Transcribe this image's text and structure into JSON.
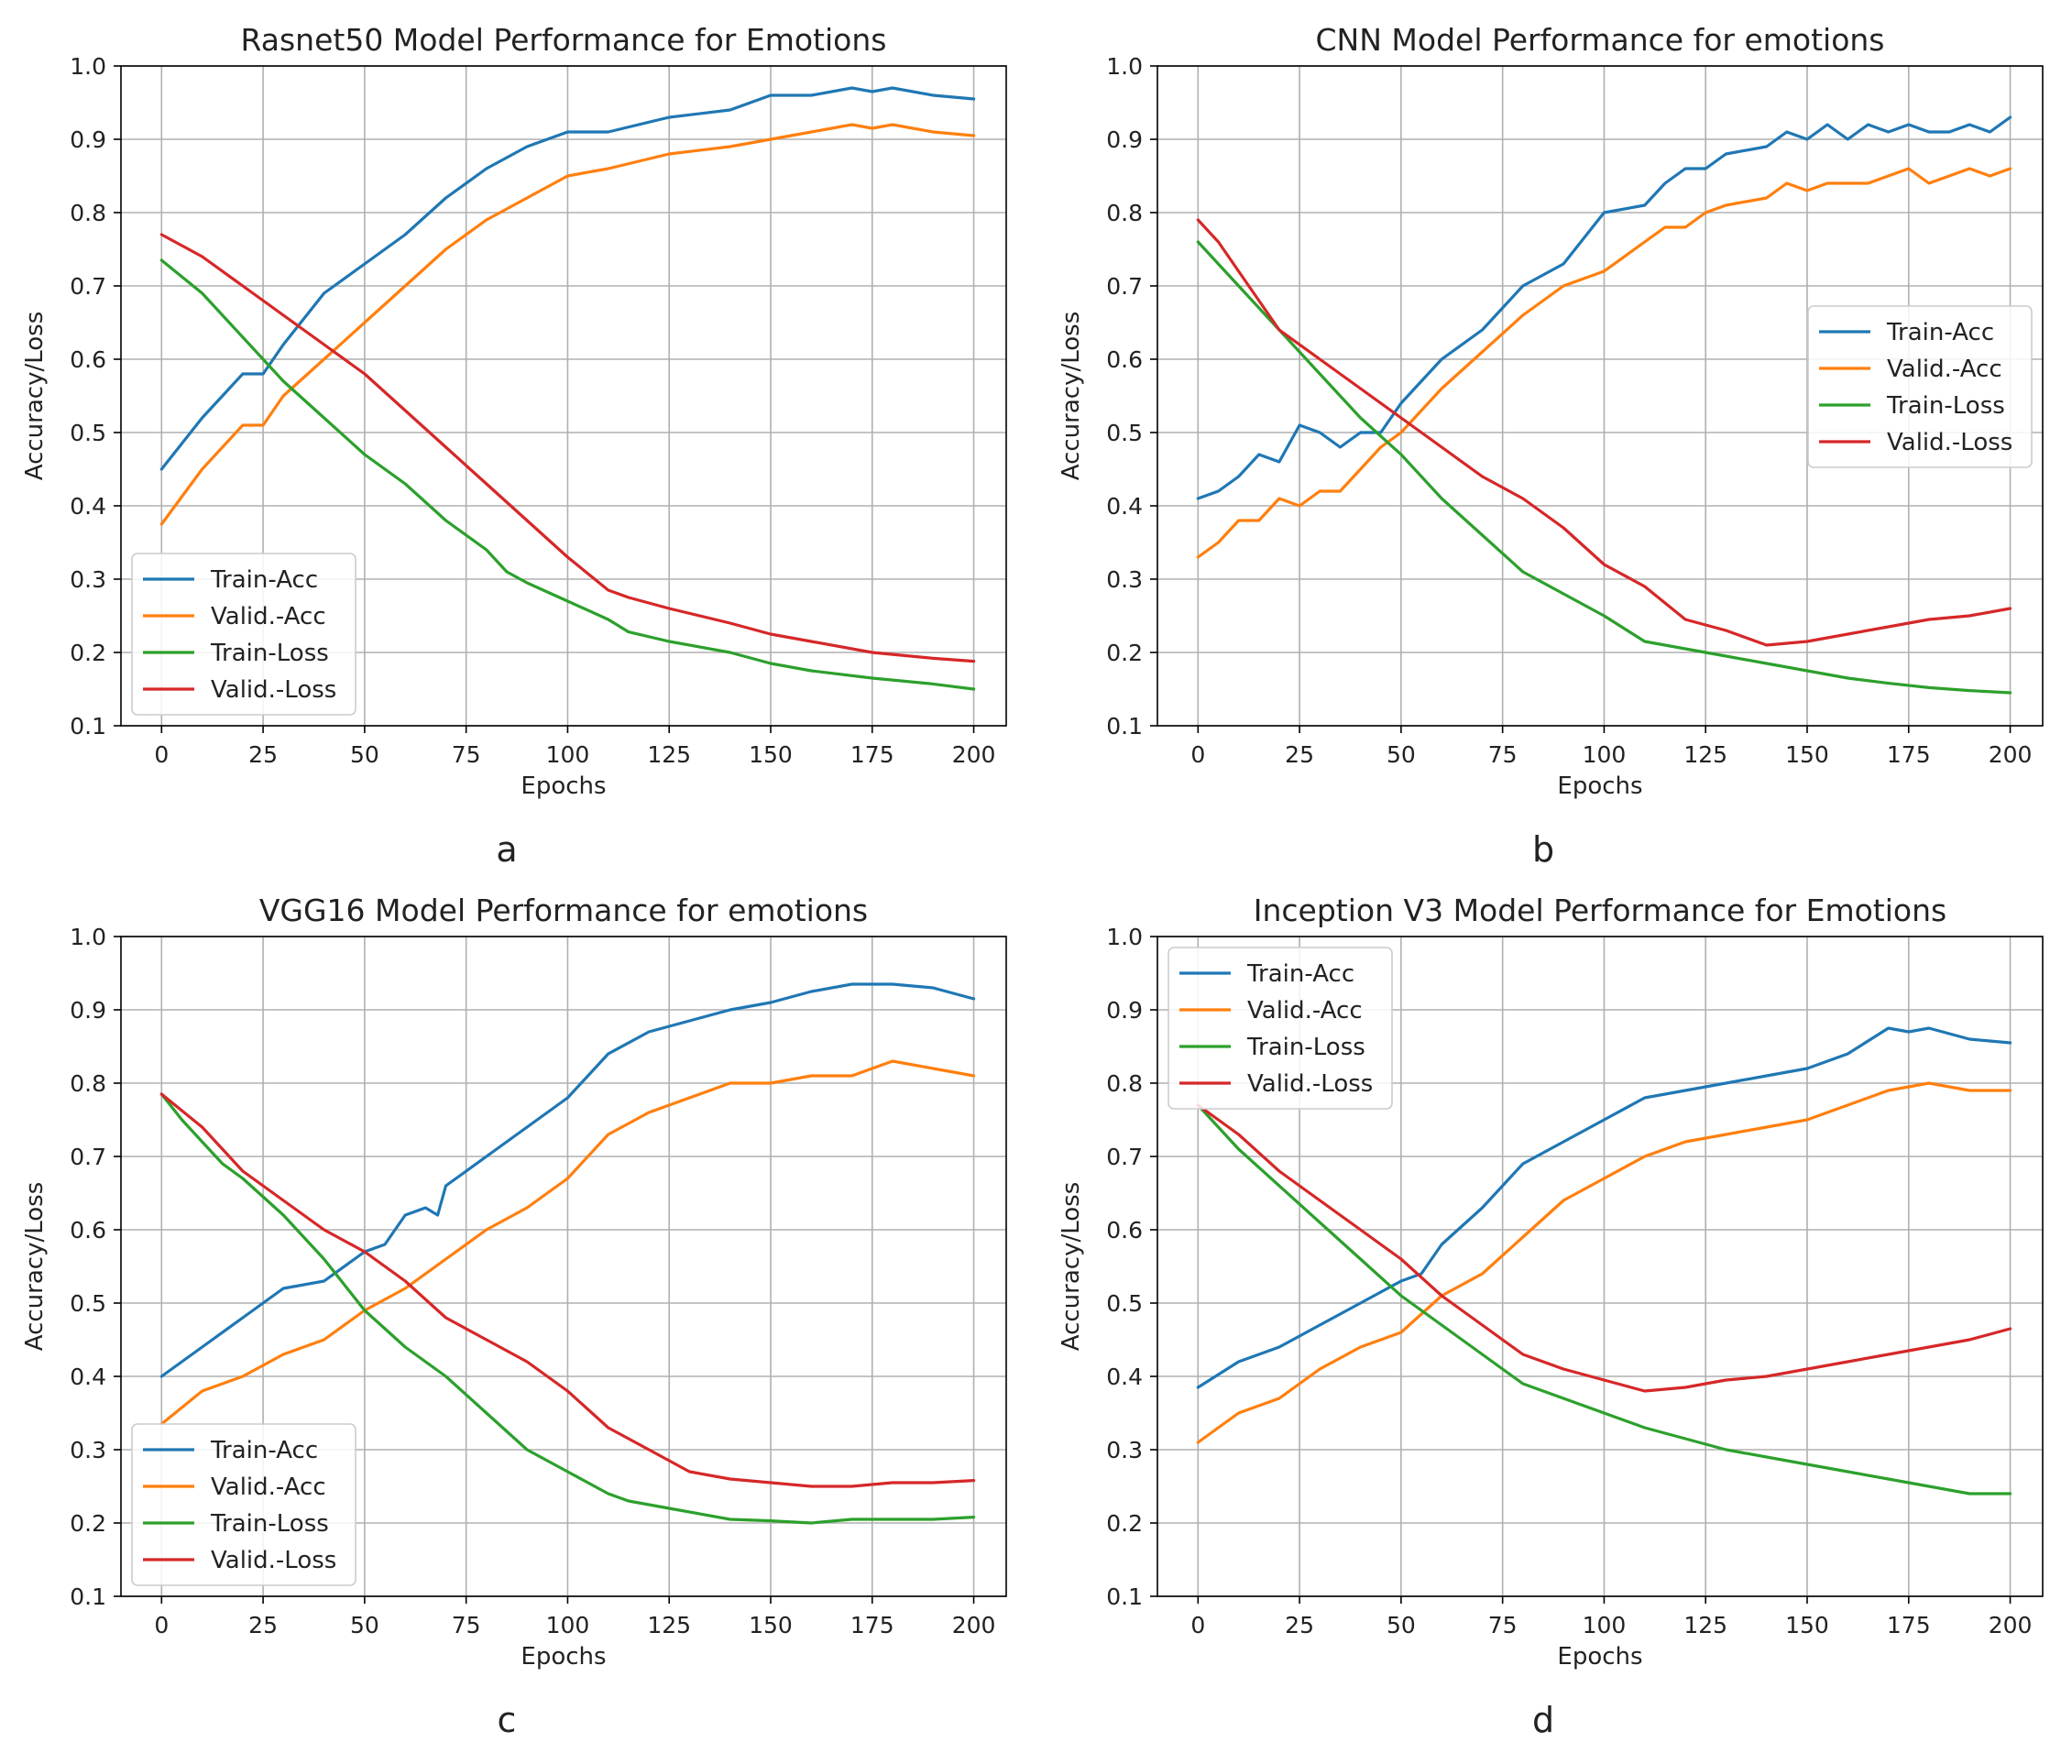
{
  "colors": {
    "train_acc": "#1f77b4",
    "valid_acc": "#ff7f0e",
    "train_loss": "#2ca02c",
    "valid_loss": "#d62728",
    "grid": "#b0b0b0",
    "axis": "#000000"
  },
  "chart_data": [
    {
      "type": "line",
      "panel_label": "a",
      "title": "Rasnet50 Model Performance for Emotions",
      "xlabel": "Epochs",
      "ylabel": "Accuracy/Loss",
      "xlim": [
        -10,
        208
      ],
      "ylim": [
        0.1,
        1.0
      ],
      "xticks": [
        0,
        25,
        50,
        75,
        100,
        125,
        150,
        175,
        200
      ],
      "yticks": [
        0.1,
        0.2,
        0.3,
        0.4,
        0.5,
        0.6,
        0.7,
        0.8,
        0.9,
        1.0
      ],
      "ytick_labels": [
        "0.1",
        "0.2",
        "0.3",
        "0.4",
        "0.5",
        "0.6",
        "0.7",
        "0.8",
        "0.9",
        "1.0"
      ],
      "grid": true,
      "legend_position": "lower-left",
      "series": [
        {
          "name": "Train-Acc",
          "color_key": "train_acc",
          "x": [
            0,
            10,
            20,
            25,
            30,
            40,
            50,
            60,
            70,
            80,
            90,
            100,
            110,
            125,
            140,
            150,
            160,
            170,
            175,
            180,
            190,
            200
          ],
          "y": [
            0.45,
            0.52,
            0.58,
            0.58,
            0.62,
            0.69,
            0.73,
            0.77,
            0.82,
            0.86,
            0.89,
            0.91,
            0.91,
            0.93,
            0.94,
            0.96,
            0.96,
            0.97,
            0.965,
            0.97,
            0.96,
            0.955
          ]
        },
        {
          "name": "Valid.-Acc",
          "color_key": "valid_acc",
          "x": [
            0,
            10,
            20,
            25,
            30,
            40,
            50,
            60,
            70,
            80,
            90,
            100,
            110,
            125,
            140,
            150,
            160,
            170,
            175,
            180,
            190,
            200
          ],
          "y": [
            0.375,
            0.45,
            0.51,
            0.51,
            0.55,
            0.6,
            0.65,
            0.7,
            0.75,
            0.79,
            0.82,
            0.85,
            0.86,
            0.88,
            0.89,
            0.9,
            0.91,
            0.92,
            0.915,
            0.92,
            0.91,
            0.905
          ]
        },
        {
          "name": "Train-Loss",
          "color_key": "train_loss",
          "x": [
            0,
            10,
            20,
            25,
            30,
            40,
            50,
            60,
            70,
            80,
            85,
            90,
            100,
            110,
            115,
            125,
            140,
            150,
            160,
            175,
            190,
            200
          ],
          "y": [
            0.735,
            0.69,
            0.63,
            0.6,
            0.57,
            0.52,
            0.47,
            0.43,
            0.38,
            0.34,
            0.31,
            0.295,
            0.27,
            0.245,
            0.228,
            0.215,
            0.2,
            0.185,
            0.175,
            0.165,
            0.157,
            0.15
          ]
        },
        {
          "name": "Valid.-Loss",
          "color_key": "valid_loss",
          "x": [
            0,
            10,
            20,
            25,
            30,
            40,
            50,
            60,
            70,
            80,
            90,
            100,
            110,
            115,
            125,
            140,
            150,
            160,
            175,
            190,
            200
          ],
          "y": [
            0.77,
            0.74,
            0.7,
            0.68,
            0.66,
            0.62,
            0.58,
            0.53,
            0.48,
            0.43,
            0.38,
            0.33,
            0.285,
            0.275,
            0.26,
            0.24,
            0.225,
            0.215,
            0.2,
            0.192,
            0.188
          ]
        }
      ]
    },
    {
      "type": "line",
      "panel_label": "b",
      "title": "CNN Model Performance for emotions",
      "xlabel": "Epochs",
      "ylabel": "Accuracy/Loss",
      "xlim": [
        -10,
        208
      ],
      "ylim": [
        0.1,
        1.0
      ],
      "xticks": [
        0,
        25,
        50,
        75,
        100,
        125,
        150,
        175,
        200
      ],
      "yticks": [
        0.1,
        0.2,
        0.3,
        0.4,
        0.5,
        0.6,
        0.7,
        0.8,
        0.9,
        1.0
      ],
      "ytick_labels": [
        "0.1",
        "0.2",
        "0.3",
        "0.4",
        "0.5",
        "0.6",
        "0.7",
        "0.8",
        "0.9",
        "1.0"
      ],
      "grid": true,
      "legend_position": "center-right",
      "series": [
        {
          "name": "Train-Acc",
          "color_key": "train_acc",
          "x": [
            0,
            5,
            10,
            15,
            20,
            25,
            30,
            35,
            40,
            45,
            50,
            55,
            60,
            70,
            80,
            90,
            100,
            110,
            115,
            120,
            125,
            130,
            140,
            145,
            150,
            155,
            160,
            165,
            170,
            175,
            180,
            185,
            190,
            195,
            200
          ],
          "y": [
            0.41,
            0.42,
            0.44,
            0.47,
            0.46,
            0.51,
            0.5,
            0.48,
            0.5,
            0.5,
            0.54,
            0.57,
            0.6,
            0.64,
            0.7,
            0.73,
            0.8,
            0.81,
            0.84,
            0.86,
            0.86,
            0.88,
            0.89,
            0.91,
            0.9,
            0.92,
            0.9,
            0.92,
            0.91,
            0.92,
            0.91,
            0.91,
            0.92,
            0.91,
            0.93
          ]
        },
        {
          "name": "Valid.-Acc",
          "color_key": "valid_acc",
          "x": [
            0,
            5,
            10,
            15,
            20,
            25,
            30,
            35,
            40,
            45,
            50,
            55,
            60,
            70,
            80,
            90,
            100,
            110,
            115,
            120,
            125,
            130,
            140,
            145,
            150,
            155,
            160,
            165,
            170,
            175,
            180,
            185,
            190,
            195,
            200
          ],
          "y": [
            0.33,
            0.35,
            0.38,
            0.38,
            0.41,
            0.4,
            0.42,
            0.42,
            0.45,
            0.48,
            0.5,
            0.53,
            0.56,
            0.61,
            0.66,
            0.7,
            0.72,
            0.76,
            0.78,
            0.78,
            0.8,
            0.81,
            0.82,
            0.84,
            0.83,
            0.84,
            0.84,
            0.84,
            0.85,
            0.86,
            0.84,
            0.85,
            0.86,
            0.85,
            0.86
          ]
        },
        {
          "name": "Train-Loss",
          "color_key": "train_loss",
          "x": [
            0,
            10,
            20,
            30,
            40,
            50,
            60,
            70,
            80,
            90,
            100,
            110,
            120,
            130,
            140,
            150,
            160,
            170,
            180,
            190,
            200
          ],
          "y": [
            0.76,
            0.7,
            0.64,
            0.58,
            0.52,
            0.47,
            0.41,
            0.36,
            0.31,
            0.28,
            0.25,
            0.215,
            0.205,
            0.195,
            0.185,
            0.175,
            0.165,
            0.158,
            0.152,
            0.148,
            0.145
          ]
        },
        {
          "name": "Valid.-Loss",
          "color_key": "valid_loss",
          "x": [
            0,
            5,
            10,
            20,
            30,
            40,
            50,
            60,
            70,
            80,
            90,
            100,
            110,
            120,
            130,
            140,
            150,
            160,
            170,
            180,
            190,
            200
          ],
          "y": [
            0.79,
            0.76,
            0.72,
            0.64,
            0.6,
            0.56,
            0.52,
            0.48,
            0.44,
            0.41,
            0.37,
            0.32,
            0.29,
            0.245,
            0.23,
            0.21,
            0.215,
            0.225,
            0.235,
            0.245,
            0.25,
            0.26
          ]
        }
      ]
    },
    {
      "type": "line",
      "panel_label": "c",
      "title": "VGG16 Model Performance for emotions",
      "xlabel": "Epochs",
      "ylabel": "Accuracy/Loss",
      "xlim": [
        -10,
        208
      ],
      "ylim": [
        0.1,
        1.0
      ],
      "xticks": [
        0,
        25,
        50,
        75,
        100,
        125,
        150,
        175,
        200
      ],
      "yticks": [
        0.1,
        0.2,
        0.3,
        0.4,
        0.5,
        0.6,
        0.7,
        0.8,
        0.9,
        1.0
      ],
      "ytick_labels": [
        "0.1",
        "0.2",
        "0.3",
        "0.4",
        "0.5",
        "0.6",
        "0.7",
        "0.8",
        "0.9",
        "1.0"
      ],
      "grid": true,
      "legend_position": "lower-left",
      "series": [
        {
          "name": "Train-Acc",
          "color_key": "train_acc",
          "x": [
            0,
            10,
            20,
            30,
            40,
            50,
            55,
            60,
            65,
            68,
            70,
            75,
            80,
            90,
            100,
            110,
            120,
            130,
            140,
            150,
            160,
            170,
            180,
            190,
            200
          ],
          "y": [
            0.4,
            0.44,
            0.48,
            0.52,
            0.53,
            0.57,
            0.58,
            0.62,
            0.63,
            0.62,
            0.66,
            0.68,
            0.7,
            0.74,
            0.78,
            0.84,
            0.87,
            0.885,
            0.9,
            0.91,
            0.925,
            0.935,
            0.935,
            0.93,
            0.915
          ]
        },
        {
          "name": "Valid.-Acc",
          "color_key": "valid_acc",
          "x": [
            0,
            10,
            20,
            30,
            40,
            50,
            60,
            70,
            80,
            90,
            100,
            110,
            120,
            130,
            140,
            150,
            160,
            170,
            180,
            190,
            200
          ],
          "y": [
            0.335,
            0.38,
            0.4,
            0.43,
            0.45,
            0.49,
            0.52,
            0.56,
            0.6,
            0.63,
            0.67,
            0.73,
            0.76,
            0.78,
            0.8,
            0.8,
            0.81,
            0.81,
            0.83,
            0.82,
            0.81
          ]
        },
        {
          "name": "Train-Loss",
          "color_key": "train_loss",
          "x": [
            0,
            5,
            10,
            15,
            20,
            30,
            40,
            50,
            60,
            70,
            80,
            90,
            100,
            110,
            115,
            125,
            140,
            150,
            160,
            170,
            180,
            190,
            200
          ],
          "y": [
            0.785,
            0.75,
            0.72,
            0.69,
            0.67,
            0.62,
            0.56,
            0.49,
            0.44,
            0.4,
            0.35,
            0.3,
            0.27,
            0.24,
            0.23,
            0.22,
            0.205,
            0.203,
            0.2,
            0.205,
            0.205,
            0.205,
            0.208
          ]
        },
        {
          "name": "Valid.-Loss",
          "color_key": "valid_loss",
          "x": [
            0,
            10,
            20,
            30,
            40,
            50,
            60,
            70,
            80,
            90,
            100,
            110,
            120,
            130,
            140,
            150,
            160,
            170,
            180,
            190,
            200
          ],
          "y": [
            0.785,
            0.74,
            0.68,
            0.64,
            0.6,
            0.57,
            0.53,
            0.48,
            0.45,
            0.42,
            0.38,
            0.33,
            0.3,
            0.27,
            0.26,
            0.255,
            0.25,
            0.25,
            0.255,
            0.255,
            0.258
          ]
        }
      ]
    },
    {
      "type": "line",
      "panel_label": "d",
      "title": "Inception V3 Model Performance for Emotions",
      "xlabel": "Epochs",
      "ylabel": "Accuracy/Loss",
      "xlim": [
        -10,
        208
      ],
      "ylim": [
        0.1,
        1.0
      ],
      "xticks": [
        0,
        25,
        50,
        75,
        100,
        125,
        150,
        175,
        200
      ],
      "yticks": [
        0.1,
        0.2,
        0.3,
        0.4,
        0.5,
        0.6,
        0.7,
        0.8,
        0.9,
        1.0
      ],
      "ytick_labels": [
        "0.1",
        "0.2",
        "0.3",
        "0.4",
        "0.5",
        "0.6",
        "0.7",
        "0.8",
        "0.9",
        "1.0"
      ],
      "grid": true,
      "legend_position": "upper-left",
      "series": [
        {
          "name": "Train-Acc",
          "color_key": "train_acc",
          "x": [
            0,
            10,
            20,
            30,
            40,
            50,
            55,
            60,
            70,
            80,
            90,
            100,
            110,
            120,
            130,
            140,
            150,
            160,
            170,
            175,
            180,
            190,
            200
          ],
          "y": [
            0.385,
            0.42,
            0.44,
            0.47,
            0.5,
            0.53,
            0.54,
            0.58,
            0.63,
            0.69,
            0.72,
            0.75,
            0.78,
            0.79,
            0.8,
            0.81,
            0.82,
            0.84,
            0.875,
            0.87,
            0.875,
            0.86,
            0.855
          ]
        },
        {
          "name": "Valid.-Acc",
          "color_key": "valid_acc",
          "x": [
            0,
            10,
            20,
            30,
            40,
            50,
            60,
            70,
            80,
            90,
            100,
            110,
            120,
            130,
            140,
            150,
            160,
            170,
            180,
            190,
            200
          ],
          "y": [
            0.31,
            0.35,
            0.37,
            0.41,
            0.44,
            0.46,
            0.51,
            0.54,
            0.59,
            0.64,
            0.67,
            0.7,
            0.72,
            0.73,
            0.74,
            0.75,
            0.77,
            0.79,
            0.8,
            0.79,
            0.79
          ]
        },
        {
          "name": "Train-Loss",
          "color_key": "train_loss",
          "x": [
            0,
            10,
            20,
            30,
            40,
            50,
            60,
            70,
            80,
            90,
            100,
            110,
            120,
            130,
            140,
            150,
            160,
            170,
            180,
            190,
            200
          ],
          "y": [
            0.77,
            0.71,
            0.66,
            0.61,
            0.56,
            0.51,
            0.47,
            0.43,
            0.39,
            0.37,
            0.35,
            0.33,
            0.315,
            0.3,
            0.29,
            0.28,
            0.27,
            0.26,
            0.25,
            0.24,
            0.24
          ]
        },
        {
          "name": "Valid.-Loss",
          "color_key": "valid_loss",
          "x": [
            0,
            10,
            20,
            30,
            40,
            50,
            60,
            70,
            80,
            90,
            100,
            110,
            120,
            130,
            140,
            150,
            160,
            170,
            180,
            190,
            200
          ],
          "y": [
            0.77,
            0.73,
            0.68,
            0.64,
            0.6,
            0.56,
            0.51,
            0.47,
            0.43,
            0.41,
            0.395,
            0.38,
            0.385,
            0.395,
            0.4,
            0.41,
            0.42,
            0.43,
            0.44,
            0.45,
            0.465
          ]
        }
      ]
    }
  ]
}
